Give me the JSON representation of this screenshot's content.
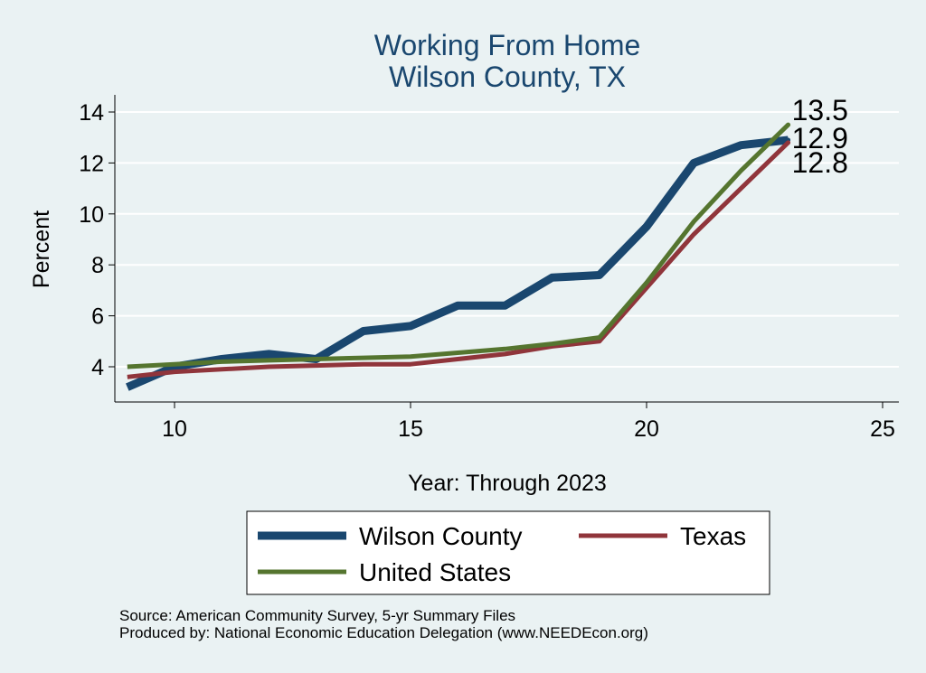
{
  "chart_data": {
    "type": "line",
    "title": "Working From Home",
    "subtitle": "Wilson County, TX",
    "xlabel": "Year: Through 2023",
    "ylabel": "Percent",
    "xlim": [
      9,
      25
    ],
    "ylim": [
      2.6,
      14.7
    ],
    "x_ticks": [
      10,
      15,
      20,
      25
    ],
    "y_ticks": [
      4,
      6,
      8,
      10,
      12,
      14
    ],
    "grid": true,
    "legend_placement": "bottom",
    "series": [
      {
        "name": "Wilson County",
        "color": "#1a476f",
        "x": [
          9,
          10,
          11,
          12,
          13,
          14,
          15,
          16,
          17,
          18,
          19,
          20,
          21,
          22,
          23
        ],
        "values": [
          3.2,
          4.0,
          4.3,
          4.5,
          4.3,
          5.4,
          5.6,
          6.4,
          6.4,
          7.5,
          7.6,
          9.5,
          12.0,
          12.7,
          12.9
        ]
      },
      {
        "name": "Texas",
        "color": "#90353b",
        "x": [
          9,
          10,
          11,
          12,
          13,
          14,
          15,
          16,
          17,
          18,
          19,
          20,
          21,
          22,
          23
        ],
        "values": [
          3.6,
          3.8,
          3.9,
          4.0,
          4.05,
          4.1,
          4.1,
          4.3,
          4.5,
          4.8,
          5.0,
          7.1,
          9.2,
          11.0,
          12.8
        ]
      },
      {
        "name": "United States",
        "color": "#55752f",
        "x": [
          9,
          10,
          11,
          12,
          13,
          14,
          15,
          16,
          17,
          18,
          19,
          20,
          21,
          22,
          23
        ],
        "values": [
          4.0,
          4.1,
          4.2,
          4.25,
          4.3,
          4.35,
          4.4,
          4.55,
          4.7,
          4.9,
          5.15,
          7.3,
          9.7,
          11.7,
          13.5
        ]
      }
    ],
    "end_labels": [
      "13.5",
      "12.9",
      "12.8"
    ]
  },
  "footer": {
    "source": "Source: American Community Survey, 5-yr Summary Files",
    "produced_by": "Produced by: National Economic Education Delegation (www.NEEDEcon.org)"
  }
}
